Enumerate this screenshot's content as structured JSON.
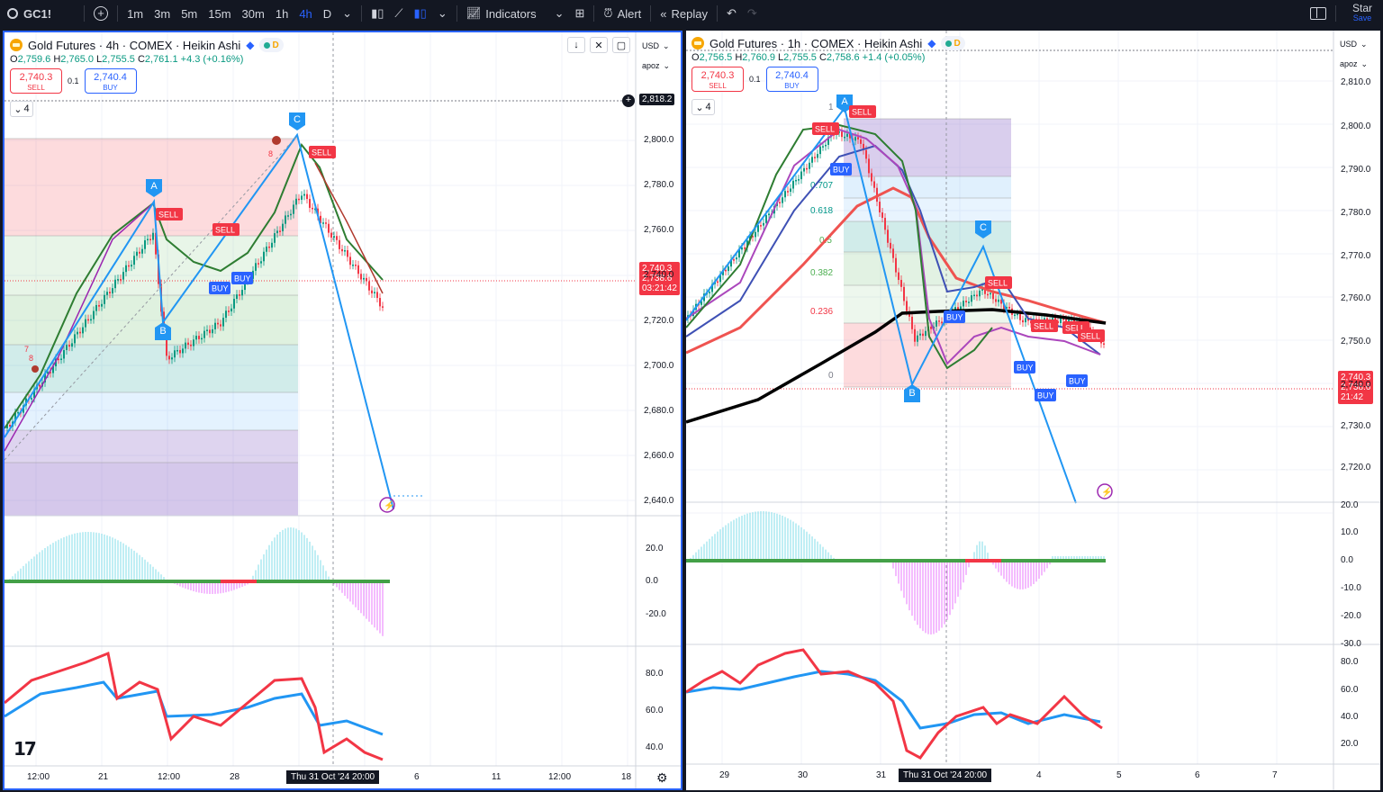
{
  "topbar": {
    "symbol": "GC1!",
    "intervals": [
      "1m",
      "3m",
      "5m",
      "15m",
      "30m",
      "1h",
      "4h",
      "D"
    ],
    "active_interval": "4h",
    "indicators_label": "Indicators",
    "alert_label": "Alert",
    "replay_label": "Replay",
    "star_label": "Star",
    "save_label": "Save"
  },
  "colors": {
    "up": "#089981",
    "down": "#f23645",
    "accent": "#2962ff",
    "bg": "#131722"
  },
  "left": {
    "title": "Gold Futures · 4h · COMEX · Heikin Ashi",
    "ohlc": {
      "o_l": "O",
      "o": "2,759.6",
      "h_l": "H",
      "h": "2,765.0",
      "l_l": "L",
      "l": "2,755.5",
      "c_l": "C",
      "c": "2,761.1",
      "chg": "+4.3 (+0.16%)"
    },
    "sell_price": "2,740.3",
    "sell_label": "SELL",
    "spread": "0.1",
    "buy_price": "2,740.4",
    "buy_label": "BUY",
    "collapse_count": "4",
    "currency": "USD",
    "scale_mode": "apoz",
    "crosshair_price": "2,818.2",
    "last_price": "2,740.3",
    "last_price2": "2,738.6",
    "countdown": "03:21:42",
    "price_axis": [
      "2,800.0",
      "2,780.0",
      "2,760.0",
      "2,740.0",
      "2,720.0",
      "2,700.0",
      "2,680.0",
      "2,660.0",
      "2,640.0"
    ],
    "osc_axis": [
      "20.0",
      "0.0",
      "-20.0"
    ],
    "rsi_axis": [
      "80.0",
      "60.0",
      "40.0"
    ],
    "time_axis": [
      "12:00",
      "21",
      "12:00",
      "28",
      "6",
      "11",
      "12:00",
      "18"
    ],
    "time_highlight": "Thu 31 Oct '24  20:00",
    "waves": [
      "A",
      "B",
      "C"
    ],
    "signals": [
      "SELL",
      "SELL",
      "SELL",
      "BUY",
      "BUY"
    ],
    "marker_numbers": [
      "7",
      "8",
      "8"
    ]
  },
  "right": {
    "title": "Gold Futures · 1h · COMEX · Heikin Ashi",
    "ohlc": {
      "o_l": "O",
      "o": "2,756.5",
      "h_l": "H",
      "h": "2,760.9",
      "l_l": "L",
      "l": "2,755.5",
      "c_l": "C",
      "c": "2,758.6",
      "chg": "+1.4 (+0.05%)"
    },
    "sell_price": "2,740.3",
    "sell_label": "SELL",
    "spread": "0.1",
    "buy_price": "2,740.4",
    "buy_label": "BUY",
    "collapse_count": "4",
    "currency": "USD",
    "scale_mode": "apoz",
    "last_price": "2,740.3",
    "last_price2": "2,738.6",
    "countdown": "21:42",
    "price_axis": [
      "2,810.0",
      "2,800.0",
      "2,790.0",
      "2,780.0",
      "2,770.0",
      "2,760.0",
      "2,750.0",
      "2,740.0",
      "2,730.0",
      "2,720.0"
    ],
    "osc_axis": [
      "20.0",
      "10.0",
      "0.0",
      "-10.0",
      "-20.0",
      "-30.0"
    ],
    "rsi_axis": [
      "80.0",
      "60.0",
      "40.0",
      "20.0"
    ],
    "time_axis": [
      "29",
      "30",
      "31",
      "4",
      "5",
      "6",
      "7"
    ],
    "time_highlight": "Thu 31 Oct '24  20:00",
    "fib_levels": [
      "1",
      "0.707",
      "0.618",
      "0.5",
      "0.382",
      "0.236",
      "0"
    ],
    "waves": [
      "A",
      "B",
      "C"
    ],
    "signals": [
      "SELL",
      "SELL",
      "SELL",
      "SELL",
      "SELL",
      "SELL"
    ],
    "buys": [
      "BUY",
      "BUY",
      "BUY",
      "BUY",
      "BUY"
    ]
  }
}
